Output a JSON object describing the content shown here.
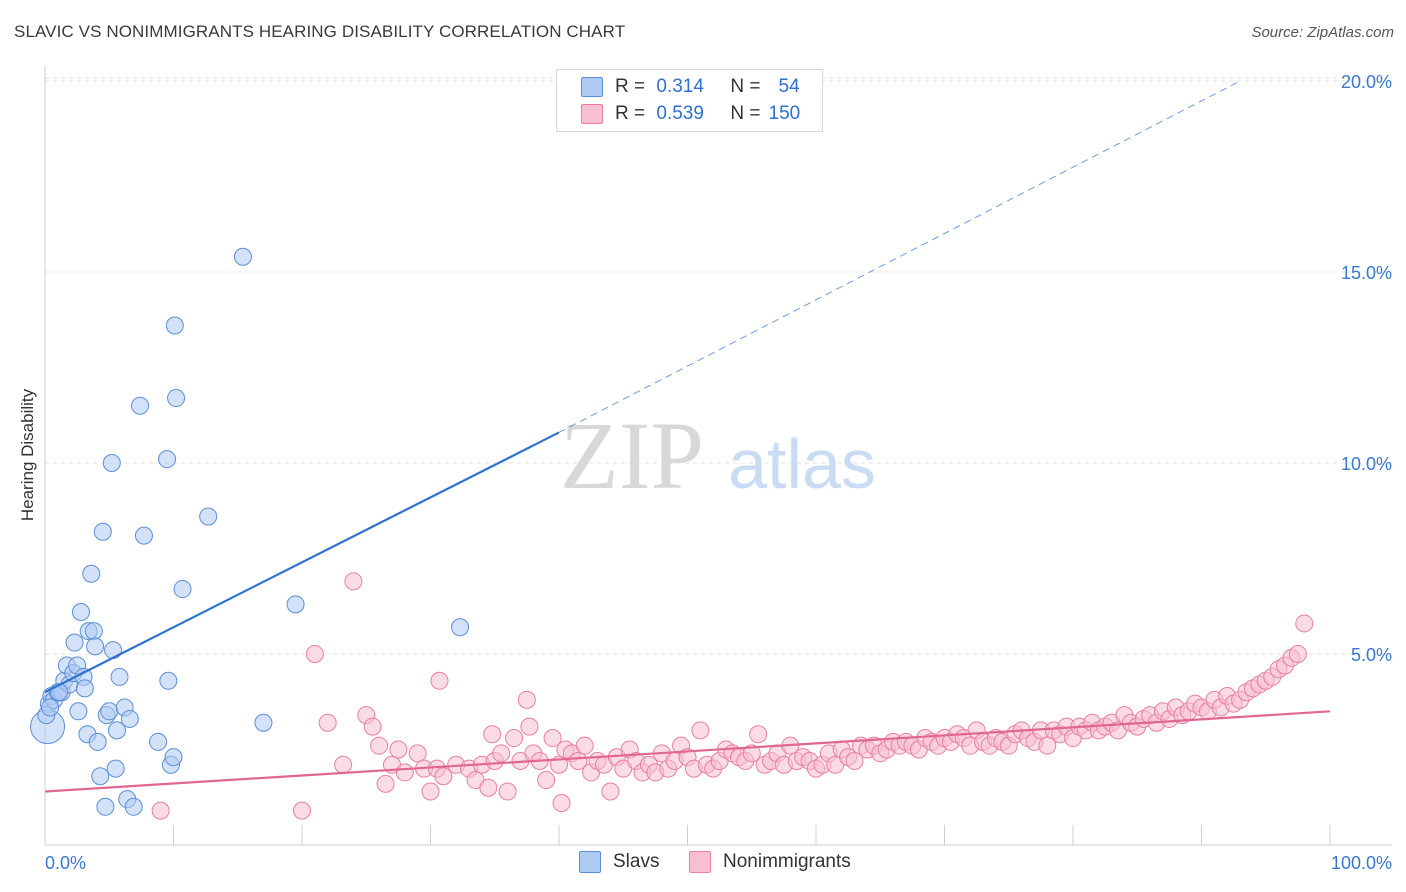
{
  "title": "SLAVIC VS NONIMMIGRANTS HEARING DISABILITY CORRELATION CHART",
  "source": "Source: ZipAtlas.com",
  "watermark": {
    "zip": "ZIP",
    "atlas": "atlas"
  },
  "legend": {
    "rows": [
      {
        "r_label": "R =",
        "r_value": "0.314",
        "n_label": "N =",
        "n_value": "54"
      },
      {
        "r_label": "R =",
        "r_value": "0.539",
        "n_label": "N =",
        "n_value": "150"
      }
    ]
  },
  "colors": {
    "slavs_fill": "#aecbf2",
    "slavs_stroke": "#5b8fd6",
    "slavs_line": "#2f72d0",
    "nonimm_fill": "#f7bfd0",
    "nonimm_stroke": "#e8809f",
    "nonimm_line": "#e0678f",
    "axis_text": "#3a78cf"
  },
  "chart_data": {
    "type": "scatter",
    "title": "SLAVIC VS NONIMMIGRANTS HEARING DISABILITY CORRELATION CHART",
    "xlabel": "",
    "ylabel": "Hearing Disability",
    "xlim": [
      0,
      100
    ],
    "ylim": [
      0,
      20.5
    ],
    "x_tick_labels": [
      "0.0%",
      "100.0%"
    ],
    "y_ticks": [
      5,
      10,
      15,
      20
    ],
    "y_tick_labels": [
      "5.0%",
      "10.0%",
      "15.0%",
      "20.0%"
    ],
    "grid": true,
    "legend_position": "top-center",
    "series": [
      {
        "name": "Slavs",
        "r": 0.314,
        "n": 54,
        "trend": {
          "x": [
            0,
            40
          ],
          "y": [
            4.0,
            10.8
          ],
          "extended_to": [
            93,
            20.0
          ]
        },
        "points": [
          [
            0.2,
            3.1
          ],
          [
            0.3,
            3.7
          ],
          [
            0.5,
            3.9
          ],
          [
            0.7,
            3.8
          ],
          [
            1.0,
            4.0
          ],
          [
            1.3,
            4.0
          ],
          [
            1.5,
            4.3
          ],
          [
            1.7,
            4.7
          ],
          [
            1.9,
            4.2
          ],
          [
            2.2,
            4.5
          ],
          [
            2.3,
            5.3
          ],
          [
            2.5,
            4.7
          ],
          [
            2.6,
            3.5
          ],
          [
            2.8,
            6.1
          ],
          [
            3.0,
            4.4
          ],
          [
            3.1,
            4.1
          ],
          [
            3.3,
            2.9
          ],
          [
            3.4,
            5.6
          ],
          [
            3.6,
            7.1
          ],
          [
            3.8,
            5.6
          ],
          [
            3.9,
            5.2
          ],
          [
            4.1,
            2.7
          ],
          [
            4.3,
            1.8
          ],
          [
            4.5,
            8.2
          ],
          [
            4.7,
            1.0
          ],
          [
            4.8,
            3.4
          ],
          [
            5.0,
            3.5
          ],
          [
            5.2,
            10.0
          ],
          [
            5.3,
            5.1
          ],
          [
            5.5,
            2.0
          ],
          [
            5.6,
            3.0
          ],
          [
            5.8,
            4.4
          ],
          [
            6.2,
            3.6
          ],
          [
            6.4,
            1.2
          ],
          [
            6.6,
            3.3
          ],
          [
            6.9,
            1.0
          ],
          [
            7.4,
            11.5
          ],
          [
            7.7,
            8.1
          ],
          [
            8.8,
            2.7
          ],
          [
            9.5,
            10.1
          ],
          [
            9.6,
            4.3
          ],
          [
            9.8,
            2.1
          ],
          [
            10.0,
            2.3
          ],
          [
            10.1,
            13.6
          ],
          [
            10.2,
            11.7
          ],
          [
            10.7,
            6.7
          ],
          [
            12.7,
            8.6
          ],
          [
            15.4,
            15.4
          ],
          [
            17.0,
            3.2
          ],
          [
            19.5,
            6.3
          ],
          [
            32.3,
            5.7
          ],
          [
            0.1,
            3.4
          ],
          [
            0.4,
            3.6
          ],
          [
            1.1,
            4.0
          ]
        ]
      },
      {
        "name": "Nonimmigrants",
        "r": 0.539,
        "n": 150,
        "trend": {
          "x": [
            0,
            100
          ],
          "y": [
            1.4,
            3.5
          ]
        },
        "points": [
          [
            9,
            0.9
          ],
          [
            20,
            0.9
          ],
          [
            21,
            5.0
          ],
          [
            22,
            3.2
          ],
          [
            24,
            6.9
          ],
          [
            25,
            3.4
          ],
          [
            25.5,
            3.1
          ],
          [
            26,
            2.6
          ],
          [
            26.5,
            1.6
          ],
          [
            27,
            2.1
          ],
          [
            28,
            1.9
          ],
          [
            29,
            2.4
          ],
          [
            29.5,
            2.0
          ],
          [
            30,
            1.4
          ],
          [
            30.5,
            2.0
          ],
          [
            31,
            1.8
          ],
          [
            30.7,
            4.3
          ],
          [
            32,
            2.1
          ],
          [
            33,
            2.0
          ],
          [
            33.5,
            1.7
          ],
          [
            34,
            2.1
          ],
          [
            34.5,
            1.5
          ],
          [
            35,
            2.2
          ],
          [
            35.5,
            2.4
          ],
          [
            36,
            1.4
          ],
          [
            36.5,
            2.8
          ],
          [
            37,
            2.2
          ],
          [
            37.5,
            3.8
          ],
          [
            37.7,
            3.1
          ],
          [
            38,
            2.4
          ],
          [
            38.5,
            2.2
          ],
          [
            39,
            1.7
          ],
          [
            39.5,
            2.8
          ],
          [
            40,
            2.1
          ],
          [
            40.2,
            1.1
          ],
          [
            40.5,
            2.5
          ],
          [
            41,
            2.4
          ],
          [
            41.5,
            2.2
          ],
          [
            42,
            2.6
          ],
          [
            42.5,
            1.9
          ],
          [
            43,
            2.2
          ],
          [
            43.5,
            2.1
          ],
          [
            44,
            1.4
          ],
          [
            44.5,
            2.3
          ],
          [
            45,
            2.0
          ],
          [
            45.5,
            2.5
          ],
          [
            46,
            2.2
          ],
          [
            46.5,
            1.9
          ],
          [
            47,
            2.1
          ],
          [
            47.5,
            1.9
          ],
          [
            48,
            2.4
          ],
          [
            48.5,
            2.0
          ],
          [
            49,
            2.2
          ],
          [
            49.5,
            2.6
          ],
          [
            50,
            2.3
          ],
          [
            50.5,
            2.0
          ],
          [
            51,
            3.0
          ],
          [
            51.5,
            2.1
          ],
          [
            52,
            2.0
          ],
          [
            52.5,
            2.2
          ],
          [
            53,
            2.5
          ],
          [
            53.5,
            2.4
          ],
          [
            54,
            2.3
          ],
          [
            54.5,
            2.2
          ],
          [
            55,
            2.4
          ],
          [
            55.5,
            2.9
          ],
          [
            56,
            2.1
          ],
          [
            56.5,
            2.2
          ],
          [
            57,
            2.4
          ],
          [
            57.5,
            2.1
          ],
          [
            58,
            2.6
          ],
          [
            58.5,
            2.2
          ],
          [
            59,
            2.3
          ],
          [
            59.5,
            2.2
          ],
          [
            60,
            2.0
          ],
          [
            60.5,
            2.1
          ],
          [
            61,
            2.4
          ],
          [
            61.5,
            2.1
          ],
          [
            62,
            2.5
          ],
          [
            62.5,
            2.3
          ],
          [
            63,
            2.2
          ],
          [
            63.5,
            2.6
          ],
          [
            64,
            2.5
          ],
          [
            64.5,
            2.6
          ],
          [
            65,
            2.4
          ],
          [
            65.5,
            2.5
          ],
          [
            66,
            2.7
          ],
          [
            66.5,
            2.6
          ],
          [
            67,
            2.7
          ],
          [
            67.5,
            2.6
          ],
          [
            68,
            2.5
          ],
          [
            68.5,
            2.8
          ],
          [
            69,
            2.7
          ],
          [
            69.5,
            2.6
          ],
          [
            70,
            2.8
          ],
          [
            70.5,
            2.7
          ],
          [
            71,
            2.9
          ],
          [
            71.5,
            2.8
          ],
          [
            72,
            2.6
          ],
          [
            72.5,
            3.0
          ],
          [
            73,
            2.7
          ],
          [
            73.5,
            2.6
          ],
          [
            74,
            2.8
          ],
          [
            74.5,
            2.7
          ],
          [
            75,
            2.6
          ],
          [
            75.5,
            2.9
          ],
          [
            76,
            3.0
          ],
          [
            76.5,
            2.8
          ],
          [
            77,
            2.7
          ],
          [
            77.5,
            3.0
          ],
          [
            78,
            2.6
          ],
          [
            78.5,
            3.0
          ],
          [
            79,
            2.9
          ],
          [
            79.5,
            3.1
          ],
          [
            80,
            2.8
          ],
          [
            80.5,
            3.1
          ],
          [
            81,
            3.0
          ],
          [
            81.5,
            3.2
          ],
          [
            82,
            3.0
          ],
          [
            82.5,
            3.1
          ],
          [
            83,
            3.2
          ],
          [
            83.5,
            3.0
          ],
          [
            84,
            3.4
          ],
          [
            84.5,
            3.2
          ],
          [
            85,
            3.1
          ],
          [
            85.5,
            3.3
          ],
          [
            86,
            3.4
          ],
          [
            86.5,
            3.2
          ],
          [
            87,
            3.5
          ],
          [
            87.5,
            3.3
          ],
          [
            88,
            3.6
          ],
          [
            88.5,
            3.4
          ],
          [
            89,
            3.5
          ],
          [
            89.5,
            3.7
          ],
          [
            90,
            3.6
          ],
          [
            90.5,
            3.5
          ],
          [
            91,
            3.8
          ],
          [
            91.5,
            3.6
          ],
          [
            92,
            3.9
          ],
          [
            92.5,
            3.7
          ],
          [
            93,
            3.8
          ],
          [
            93.5,
            4.0
          ],
          [
            94,
            4.1
          ],
          [
            94.5,
            4.2
          ],
          [
            95,
            4.3
          ],
          [
            95.5,
            4.4
          ],
          [
            96,
            4.6
          ],
          [
            96.5,
            4.7
          ],
          [
            97,
            4.9
          ],
          [
            97.5,
            5.0
          ],
          [
            98,
            5.8
          ],
          [
            23.2,
            2.1
          ],
          [
            27.5,
            2.5
          ],
          [
            34.8,
            2.9
          ]
        ]
      }
    ]
  },
  "bottom_legend": [
    "Slavs",
    "Nonimmigrants"
  ]
}
